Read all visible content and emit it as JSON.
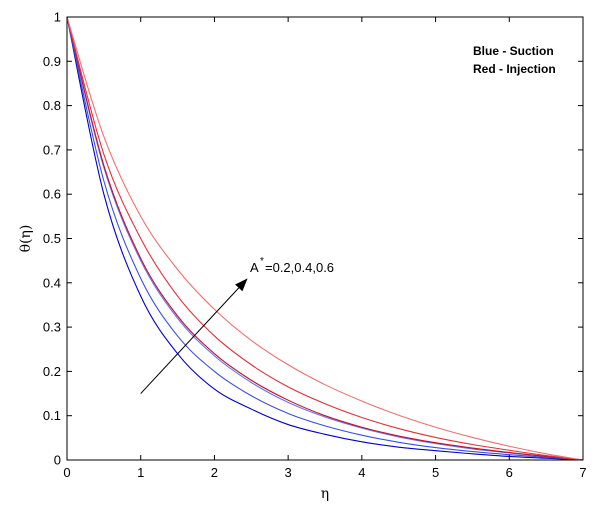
{
  "chart_data": {
    "type": "line",
    "xlabel": "η",
    "ylabel": "θ(η)",
    "xlim": [
      0,
      7
    ],
    "ylim": [
      0,
      1
    ],
    "x_ticks": [
      "0",
      "1",
      "2",
      "3",
      "4",
      "5",
      "6",
      "7"
    ],
    "y_ticks": [
      "0",
      "0.1",
      "0.2",
      "0.3",
      "0.4",
      "0.5",
      "0.6",
      "0.7",
      "0.8",
      "0.9",
      "1"
    ],
    "legend": {
      "placement": "top-right",
      "lines": [
        "Blue - Suction",
        "Red - Injection"
      ]
    },
    "annotation": {
      "base": "A",
      "superscript": "*",
      "rest": "=0.2,0.4,0.6",
      "arrow_from": [
        1.0,
        0.15
      ],
      "arrow_to": [
        2.45,
        0.41
      ]
    },
    "x": [
      0,
      0.5,
      1,
      1.5,
      2,
      2.5,
      3,
      3.5,
      4,
      4.5,
      5,
      5.5,
      6,
      6.5,
      7
    ],
    "series": [
      {
        "color": "#0000cc",
        "values": [
          1.0,
          0.6,
          0.37,
          0.24,
          0.16,
          0.115,
          0.08,
          0.058,
          0.041,
          0.029,
          0.021,
          0.014,
          0.008,
          0.004,
          0.0
        ]
      },
      {
        "color": "#3a4fe0",
        "values": [
          1.0,
          0.63,
          0.41,
          0.28,
          0.2,
          0.145,
          0.105,
          0.077,
          0.056,
          0.04,
          0.028,
          0.019,
          0.012,
          0.006,
          0.0
        ]
      },
      {
        "color": "#6a74ee",
        "values": [
          1.0,
          0.66,
          0.45,
          0.32,
          0.235,
          0.175,
          0.13,
          0.097,
          0.072,
          0.052,
          0.037,
          0.025,
          0.016,
          0.008,
          0.0
        ]
      },
      {
        "color": "#c0102a",
        "values": [
          1.0,
          0.665,
          0.455,
          0.325,
          0.24,
          0.18,
          0.135,
          0.1,
          0.074,
          0.054,
          0.039,
          0.027,
          0.017,
          0.008,
          0.0
        ]
      },
      {
        "color": "#e0303a",
        "values": [
          1.0,
          0.69,
          0.5,
          0.37,
          0.28,
          0.215,
          0.165,
          0.127,
          0.096,
          0.071,
          0.051,
          0.035,
          0.022,
          0.01,
          0.0
        ]
      },
      {
        "color": "#f07070",
        "values": [
          1.0,
          0.73,
          0.55,
          0.43,
          0.34,
          0.27,
          0.215,
          0.17,
          0.133,
          0.101,
          0.074,
          0.051,
          0.031,
          0.014,
          0.0
        ]
      }
    ]
  }
}
